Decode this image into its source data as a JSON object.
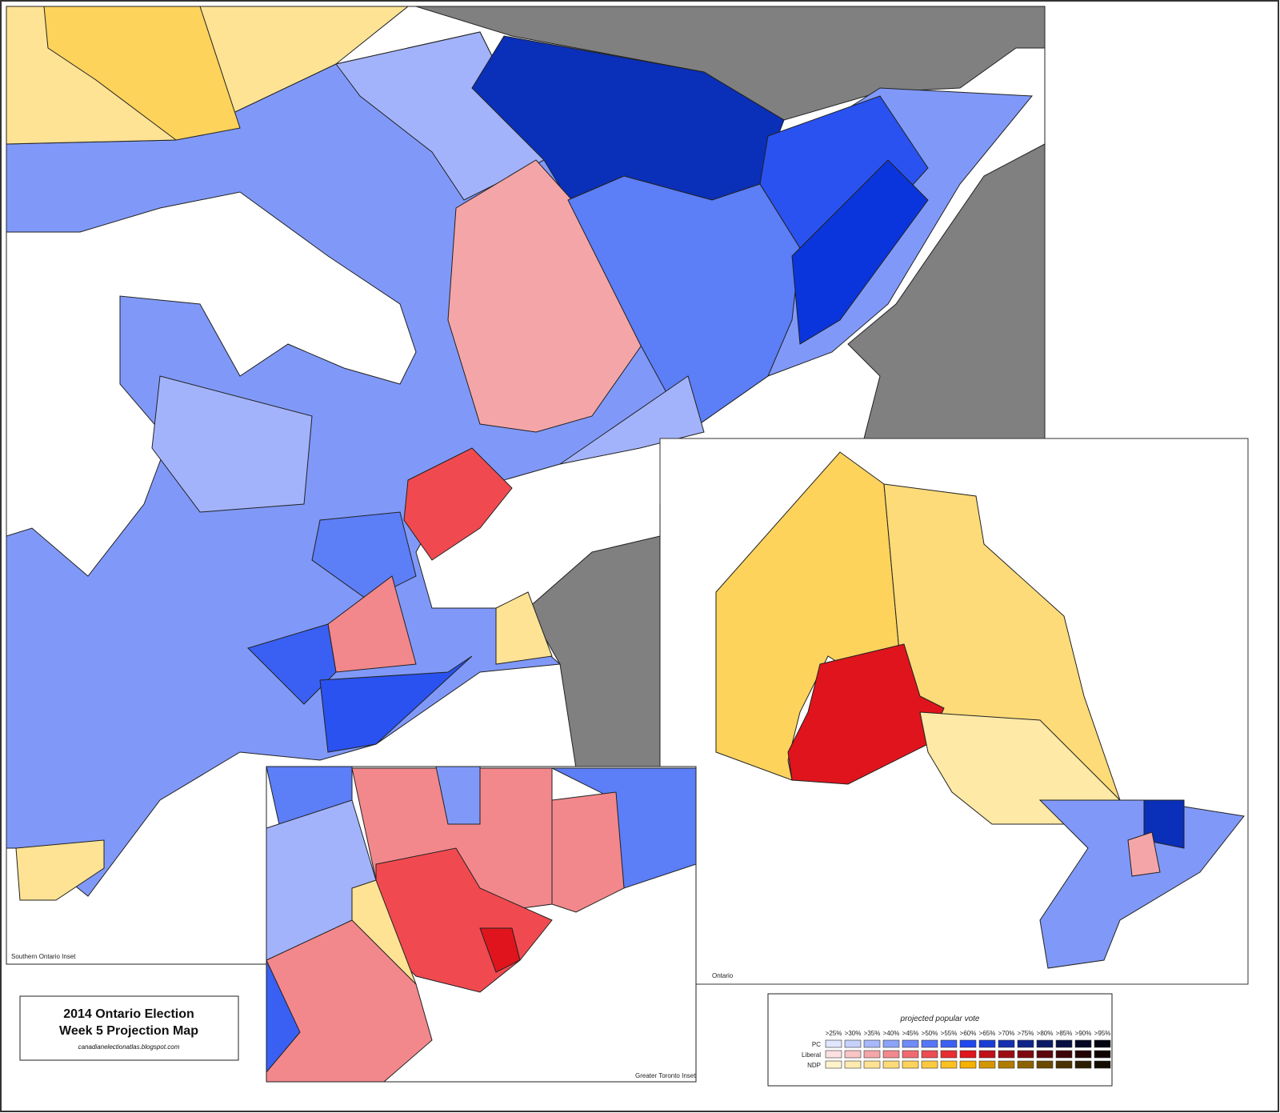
{
  "title_box": {
    "title": "2014 Ontario Election",
    "subtitle": "Week 5 Projection Map",
    "source": "canadianelectionatlas.blogspot.com"
  },
  "insets": {
    "southern": "Southern Ontario Inset",
    "toronto": "Greater Toronto Inset",
    "ontario": "Ontario"
  },
  "legend": {
    "title": "projected popular vote",
    "thresholds": [
      ">25%",
      ">30%",
      ">35%",
      ">40%",
      ">45%",
      ">50%",
      ">55%",
      ">60%",
      ">65%",
      ">70%",
      ">75%",
      ">80%",
      ">85%",
      ">90%",
      ">95%"
    ],
    "parties": [
      {
        "name": "PC",
        "colors": [
          "#e0e6fe",
          "#c6d1fd",
          "#a8b8fb",
          "#8ca3fa",
          "#6f8cf8",
          "#5577f6",
          "#3a60f3",
          "#2048ef",
          "#1a3cd6",
          "#1430b0",
          "#0e248a",
          "#0a1a66",
          "#070f44",
          "#040826",
          "#02040f"
        ]
      },
      {
        "name": "Liberal",
        "colors": [
          "#fde0e1",
          "#f9c4c6",
          "#f5a6a9",
          "#f2898d",
          "#ef6b70",
          "#ec4c52",
          "#e92c33",
          "#e0141c",
          "#c01018",
          "#9e0c13",
          "#7d090f",
          "#5c070b",
          "#3d0507",
          "#230304",
          "#0f0102"
        ]
      },
      {
        "name": "NDP",
        "colors": [
          "#fff3cc",
          "#feebb0",
          "#fee394",
          "#fddb78",
          "#fdd35c",
          "#fdca3f",
          "#fbc022",
          "#f5b000",
          "#d49600",
          "#b07c00",
          "#8c6200",
          "#6a4a00",
          "#4a3300",
          "#2c1e00",
          "#120c00"
        ]
      }
    ]
  }
}
